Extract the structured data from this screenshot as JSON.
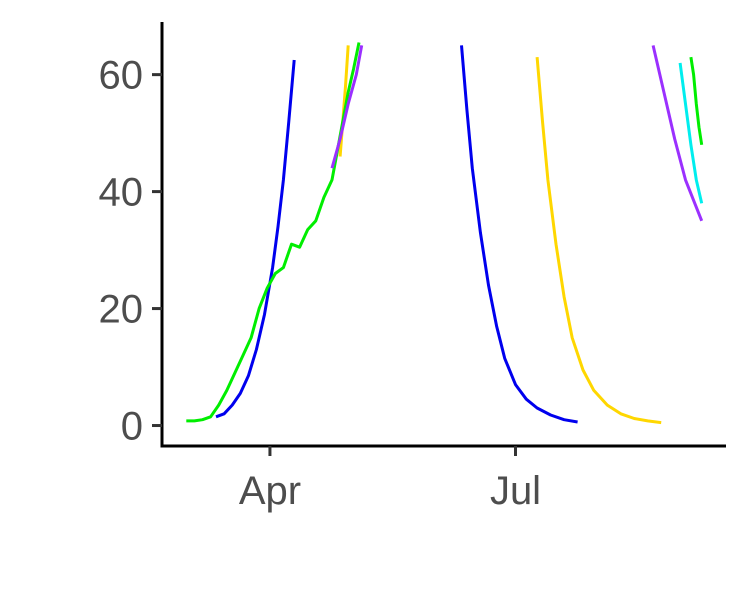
{
  "chart_data": {
    "type": "line",
    "title": "",
    "xlabel": "",
    "ylabel": "",
    "xlim": [
      "2020-02-21",
      "2020-09-17"
    ],
    "ylim": [
      -3.5,
      69
    ],
    "grid": false,
    "legend": "none",
    "x_ticks": [
      {
        "label": "Apr",
        "value": "2020-04-01"
      },
      {
        "label": "Jul",
        "value": "2020-07-01"
      }
    ],
    "y_ticks": [
      0,
      20,
      40,
      60
    ],
    "series": [
      {
        "color": "#0000ee",
        "points": [
          [
            "2020-03-12",
            1.5
          ],
          [
            "2020-03-15",
            2.0
          ],
          [
            "2020-03-18",
            3.5
          ],
          [
            "2020-03-21",
            5.5
          ],
          [
            "2020-03-24",
            8.5
          ],
          [
            "2020-03-27",
            13.0
          ],
          [
            "2020-03-30",
            19.0
          ],
          [
            "2020-04-02",
            27.0
          ],
          [
            "2020-04-04",
            34.0
          ],
          [
            "2020-04-06",
            42.0
          ],
          [
            "2020-04-08",
            52.0
          ],
          [
            "2020-04-10",
            62.5
          ]
        ]
      },
      {
        "color": "#0000ee",
        "points": [
          [
            "2020-06-11",
            65.0
          ],
          [
            "2020-06-13",
            54.0
          ],
          [
            "2020-06-15",
            44.0
          ],
          [
            "2020-06-18",
            33.0
          ],
          [
            "2020-06-21",
            24.0
          ],
          [
            "2020-06-24",
            17.0
          ],
          [
            "2020-06-27",
            11.5
          ],
          [
            "2020-07-01",
            7.0
          ],
          [
            "2020-07-05",
            4.5
          ],
          [
            "2020-07-09",
            3.0
          ],
          [
            "2020-07-14",
            1.8
          ],
          [
            "2020-07-19",
            1.0
          ],
          [
            "2020-07-24",
            0.6
          ]
        ]
      },
      {
        "color": "#ffd700",
        "points": [
          [
            "2020-04-27",
            46.0
          ],
          [
            "2020-04-28",
            52.0
          ],
          [
            "2020-04-29",
            58.0
          ],
          [
            "2020-04-30",
            65.0
          ]
        ]
      },
      {
        "color": "#ffd700",
        "points": [
          [
            "2020-07-09",
            63.0
          ],
          [
            "2020-07-11",
            52.0
          ],
          [
            "2020-07-13",
            42.0
          ],
          [
            "2020-07-16",
            31.0
          ],
          [
            "2020-07-19",
            22.0
          ],
          [
            "2020-07-22",
            15.0
          ],
          [
            "2020-07-26",
            9.5
          ],
          [
            "2020-07-30",
            6.0
          ],
          [
            "2020-08-04",
            3.5
          ],
          [
            "2020-08-09",
            2.0
          ],
          [
            "2020-08-14",
            1.2
          ],
          [
            "2020-08-19",
            0.8
          ],
          [
            "2020-08-24",
            0.5
          ]
        ]
      },
      {
        "color": "#00ee00",
        "points": [
          [
            "2020-03-01",
            0.8
          ],
          [
            "2020-03-04",
            0.8
          ],
          [
            "2020-03-07",
            1.0
          ],
          [
            "2020-03-10",
            1.5
          ],
          [
            "2020-03-13",
            3.5
          ],
          [
            "2020-03-16",
            6.0
          ],
          [
            "2020-03-19",
            9.0
          ],
          [
            "2020-03-22",
            12.0
          ],
          [
            "2020-03-25",
            15.0
          ],
          [
            "2020-03-28",
            20.0
          ],
          [
            "2020-03-31",
            23.5
          ],
          [
            "2020-04-03",
            26.0
          ],
          [
            "2020-04-06",
            27.0
          ],
          [
            "2020-04-09",
            31.0
          ],
          [
            "2020-04-12",
            30.5
          ],
          [
            "2020-04-15",
            33.5
          ],
          [
            "2020-04-18",
            35.0
          ],
          [
            "2020-04-21",
            39.0
          ],
          [
            "2020-04-24",
            42.0
          ],
          [
            "2020-04-26",
            47.0
          ],
          [
            "2020-04-28",
            52.0
          ],
          [
            "2020-04-30",
            57.0
          ],
          [
            "2020-05-02",
            61.0
          ],
          [
            "2020-05-04",
            65.5
          ]
        ]
      },
      {
        "color": "#00ee00",
        "points": [
          [
            "2020-09-04",
            63.0
          ],
          [
            "2020-09-05",
            60.0
          ],
          [
            "2020-09-06",
            55.0
          ],
          [
            "2020-09-07",
            51.0
          ],
          [
            "2020-09-08",
            48.0
          ]
        ]
      },
      {
        "color": "#9b30ff",
        "points": [
          [
            "2020-04-24",
            44.0
          ],
          [
            "2020-04-27",
            49.0
          ],
          [
            "2020-04-30",
            55.0
          ],
          [
            "2020-05-03",
            60.0
          ],
          [
            "2020-05-05",
            65.0
          ]
        ]
      },
      {
        "color": "#9b30ff",
        "points": [
          [
            "2020-08-21",
            65.0
          ],
          [
            "2020-08-25",
            57.0
          ],
          [
            "2020-08-29",
            49.0
          ],
          [
            "2020-09-02",
            42.0
          ],
          [
            "2020-09-08",
            35.0
          ]
        ]
      },
      {
        "color": "#00eeee",
        "points": [
          [
            "2020-08-31",
            62.0
          ],
          [
            "2020-09-02",
            55.0
          ],
          [
            "2020-09-04",
            48.0
          ],
          [
            "2020-09-06",
            42.0
          ],
          [
            "2020-09-08",
            38.0
          ]
        ]
      }
    ]
  }
}
